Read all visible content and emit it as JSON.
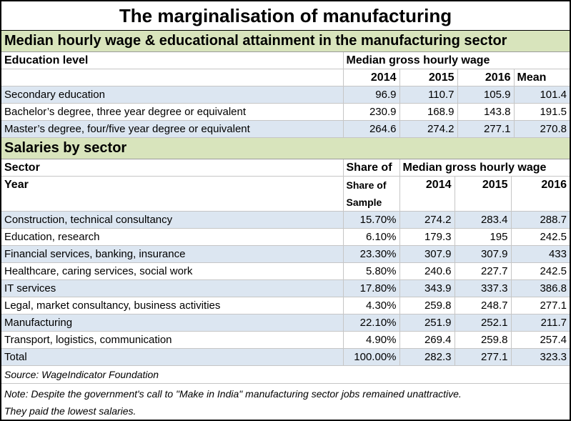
{
  "title": "The marginalisation of manufacturing",
  "section1": {
    "heading": "Median hourly wage & educational attainment in the manufacturing sector",
    "col_label": "Education level",
    "group_label": "Median gross hourly wage",
    "years": [
      "2014",
      "2015",
      "2016",
      "Mean"
    ],
    "rows": [
      {
        "label": "Secondary education",
        "values": [
          "96.9",
          "110.7",
          "105.9",
          "101.4"
        ]
      },
      {
        "label": "Bachelor’s degree, three year degree or equivalent",
        "values": [
          "230.9",
          "168.9",
          "143.8",
          "191.5"
        ]
      },
      {
        "label": "Master’s degree, four/five year degree or equivalent",
        "values": [
          "264.6",
          "274.2",
          "277.1",
          "270.8"
        ]
      }
    ]
  },
  "section2": {
    "heading": "Salaries by sector",
    "sector_label": "Sector",
    "year_label": "Year",
    "share_head": "Share of",
    "share_sub": [
      "Share of",
      "Sample"
    ],
    "group_label": "Median gross hourly wage",
    "years": [
      "2014",
      "2015",
      "2016"
    ],
    "rows": [
      {
        "label": "Construction, technical consultancy",
        "share": "15.70%",
        "values": [
          "274.2",
          "283.4",
          "288.7"
        ]
      },
      {
        "label": "Education, research",
        "share": "6.10%",
        "values": [
          "179.3",
          "195",
          "242.5"
        ]
      },
      {
        "label": "Financial services, banking, insurance",
        "share": "23.30%",
        "values": [
          "307.9",
          "307.9",
          "433"
        ]
      },
      {
        "label": "Healthcare, caring services, social work",
        "share": "5.80%",
        "values": [
          "240.6",
          "227.7",
          "242.5"
        ]
      },
      {
        "label": "IT services",
        "share": "17.80%",
        "values": [
          "343.9",
          "337.3",
          "386.8"
        ]
      },
      {
        "label": "Legal, market consultancy, business activities",
        "share": "4.30%",
        "values": [
          "259.8",
          "248.7",
          "277.1"
        ]
      },
      {
        "label": "Manufacturing",
        "share": "22.10%",
        "values": [
          "251.9",
          "252.1",
          "211.7"
        ]
      },
      {
        "label": "Transport, logistics, communication",
        "share": "4.90%",
        "values": [
          "269.4",
          "259.8",
          "257.4"
        ]
      },
      {
        "label": "Total",
        "share": "100.00%",
        "values": [
          "282.3",
          "277.1",
          "323.3"
        ]
      }
    ]
  },
  "source": "Source: WageIndicator Foundation",
  "note_lines": [
    "Note: Despite the government's call to \"Make in India\" manufacturing sector jobs remained unattractive.",
    "They paid the lowest salaries."
  ],
  "colors": {
    "section_bg": "#d8e4bc",
    "row_shade": "#dce6f1"
  }
}
